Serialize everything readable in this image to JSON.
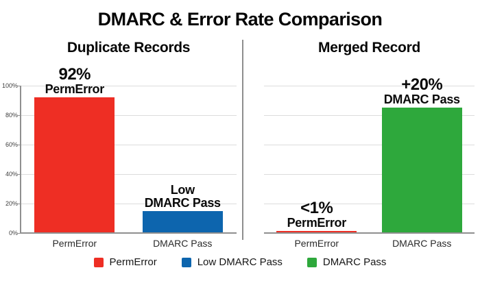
{
  "title": "DMARC & Error Rate Comparison",
  "colors": {
    "perm_error_red": "#EE2E24",
    "low_dmarc_pass_blue": "#0D65AE",
    "dmarc_pass_green": "#2EA83C",
    "gridline": "#DCDCDC",
    "axis": "#8F8F8F",
    "divider": "#8D8D8D",
    "text": "#0B0B0B"
  },
  "chart_data": [
    {
      "type": "bar",
      "title": "Duplicate Records",
      "categories": [
        "PermError",
        "DMARC Pass"
      ],
      "values": [
        92,
        15
      ],
      "bar_colors": [
        "#EE2E24",
        "#0D65AE"
      ],
      "annotations": [
        [
          "92%",
          "PermError"
        ],
        [
          "Low",
          "DMARC Pass"
        ]
      ],
      "ylabel": "",
      "ylim": [
        0,
        100
      ],
      "y_ticks": [
        "0%",
        "20%",
        "40%",
        "60%",
        "80%",
        "100%"
      ],
      "grid": true,
      "show_y_axis": true
    },
    {
      "type": "bar",
      "title": "Merged Record",
      "categories": [
        "PermError",
        "DMARC Pass"
      ],
      "values": [
        1,
        85
      ],
      "bar_colors": [
        "#EE2E24",
        "#2EA83C"
      ],
      "annotations": [
        [
          "<1%",
          "PermError"
        ],
        [
          "+20%",
          "DMARC Pass"
        ]
      ],
      "ylabel": "",
      "ylim": [
        0,
        100
      ],
      "y_ticks": [],
      "grid": true,
      "show_y_axis": false
    }
  ],
  "legend": [
    {
      "label": "PermError",
      "color": "#EE2E24"
    },
    {
      "label": "Low DMARC Pass",
      "color": "#0D65AE"
    },
    {
      "label": "DMARC Pass",
      "color": "#2EA83C"
    }
  ]
}
